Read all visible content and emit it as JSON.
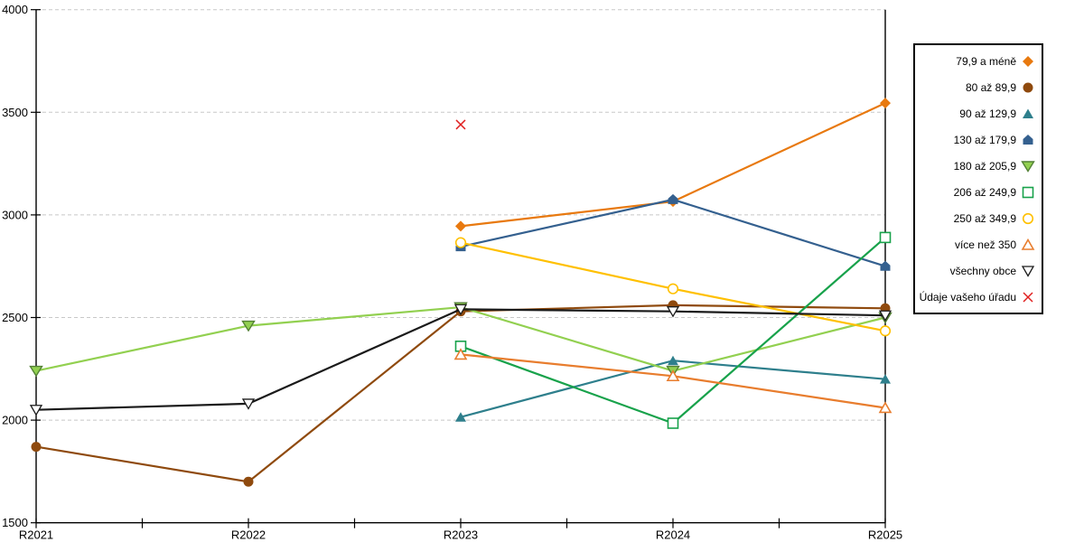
{
  "chart_data": {
    "type": "line",
    "title": "",
    "xlabel": "",
    "ylabel": "",
    "categories": [
      "R2021",
      "R2022",
      "R2023",
      "R2024",
      "R2025"
    ],
    "ylim": [
      1500,
      4000
    ],
    "ytick_step": 500,
    "yticks": [
      1500,
      2000,
      2500,
      3000,
      3500,
      4000
    ],
    "grid": "horizontal-dashed",
    "grid_color": "#c8c8c8",
    "axis_color": "#000000",
    "legend_position": "right-outside",
    "series": [
      {
        "name": "79,9 a méně",
        "marker": "diamond-filled",
        "color": "#E8790F",
        "line": true,
        "values": [
          null,
          null,
          2945,
          3065,
          3545
        ]
      },
      {
        "name": "80 až 89,9",
        "marker": "circle-filled",
        "color": "#8F4A0E",
        "line": true,
        "values": [
          1870,
          1700,
          2530,
          2560,
          2545
        ]
      },
      {
        "name": "90 až 129,9",
        "marker": "triangle-up-filled",
        "color": "#2E7F8C",
        "line": true,
        "values": [
          null,
          null,
          2015,
          2290,
          2200
        ]
      },
      {
        "name": "130 až 179,9",
        "marker": "pentagon-filled",
        "color": "#34608F",
        "line": true,
        "values": [
          null,
          null,
          2845,
          3075,
          2750
        ]
      },
      {
        "name": "180 až 205,9",
        "marker": "triangle-down-filled",
        "color": "#92D050",
        "border": "#538135",
        "line": true,
        "values": [
          2240,
          2460,
          2550,
          2240,
          2500
        ]
      },
      {
        "name": "206 až 249,9",
        "marker": "square-open",
        "color": "#18A24B",
        "line": true,
        "values": [
          null,
          null,
          2360,
          1985,
          2890
        ]
      },
      {
        "name": "250 až 349,9",
        "marker": "circle-open",
        "color": "#FFC000",
        "line": true,
        "values": [
          null,
          null,
          2865,
          2640,
          2435
        ]
      },
      {
        "name": "více než 350",
        "marker": "triangle-up-open",
        "color": "#E87D2E",
        "line": true,
        "values": [
          null,
          null,
          2320,
          2215,
          2060
        ]
      },
      {
        "name": "všechny obce",
        "marker": "triangle-down-open",
        "color": "#1A1A1A",
        "line": true,
        "values": [
          2050,
          2080,
          2540,
          2530,
          2510
        ]
      },
      {
        "name": "Údaje vašeho úřadu",
        "marker": "x",
        "color": "#E02020",
        "line": false,
        "values": [
          null,
          null,
          3440,
          null,
          null
        ]
      }
    ]
  }
}
